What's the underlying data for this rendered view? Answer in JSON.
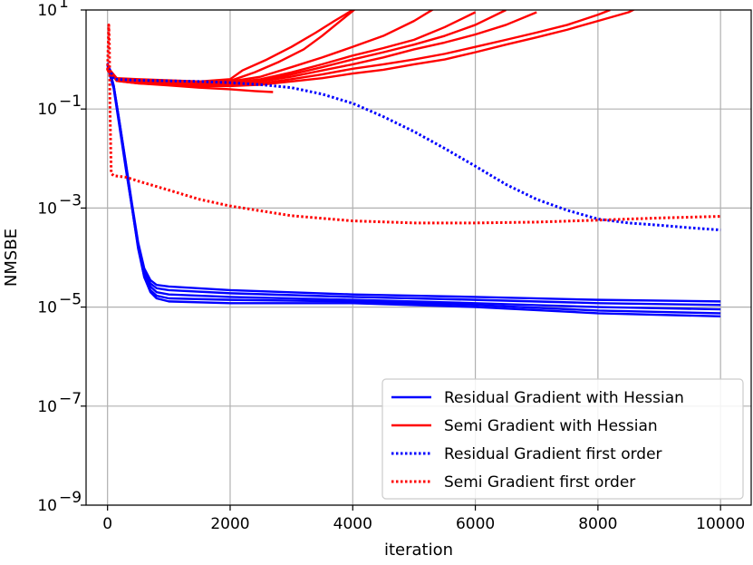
{
  "chart_data": {
    "type": "line",
    "title": "",
    "xlabel": "iteration",
    "ylabel": "NMSBE",
    "xlim": [
      -350,
      10500
    ],
    "ylim": [
      1e-09,
      10
    ],
    "yscale": "log",
    "grid": true,
    "legend_position": "lower-right",
    "x_ticks": [
      0,
      2000,
      4000,
      6000,
      8000,
      10000
    ],
    "x_tick_labels": [
      "0",
      "2000",
      "4000",
      "6000",
      "8000",
      "10000"
    ],
    "y_ticks": [
      {
        "value": 10,
        "base": "10",
        "exp": "1"
      },
      {
        "value": 0.1,
        "base": "10",
        "exp": "−1"
      },
      {
        "value": 0.001,
        "base": "10",
        "exp": "−3"
      },
      {
        "value": 1e-05,
        "base": "10",
        "exp": "−5"
      },
      {
        "value": 1e-07,
        "base": "10",
        "exp": "−7"
      },
      {
        "value": 1e-09,
        "base": "10",
        "exp": "−9"
      }
    ],
    "series": [
      {
        "name": "Residual Gradient with Hessian",
        "color": "#0000ff",
        "style": "solid",
        "runs": [
          {
            "x": [
              0,
              100,
              200,
              300,
              400,
              500,
              600,
              700,
              800,
              1000,
              2000,
              4000,
              6000,
              8000,
              10000
            ],
            "y": [
              0.8,
              0.3,
              0.05,
              0.008,
              0.0012,
              0.0002,
              6e-05,
              3.5e-05,
              2.8e-05,
              2.6e-05,
              2.2e-05,
              1.8e-05,
              1.6e-05,
              1.4e-05,
              1.3e-05
            ]
          },
          {
            "x": [
              0,
              100,
              200,
              300,
              400,
              500,
              600,
              700,
              800,
              1000,
              2000,
              4000,
              6000,
              8000,
              10000
            ],
            "y": [
              0.75,
              0.28,
              0.045,
              0.007,
              0.0011,
              0.00018,
              5e-05,
              3e-05,
              2.4e-05,
              2.2e-05,
              1.9e-05,
              1.6e-05,
              1.4e-05,
              1.2e-05,
              1.1e-05
            ]
          },
          {
            "x": [
              0,
              100,
              200,
              300,
              400,
              500,
              600,
              700,
              800,
              1000,
              2000,
              4000,
              6000,
              8000,
              10000
            ],
            "y": [
              0.7,
              0.26,
              0.04,
              0.006,
              0.001,
              0.00016,
              4.5e-05,
              2.6e-05,
              2e-05,
              1.8e-05,
              1.6e-05,
              1.4e-05,
              1.2e-05,
              1e-05,
              9e-06
            ]
          },
          {
            "x": [
              0,
              100,
              200,
              300,
              400,
              500,
              600,
              700,
              800,
              1000,
              2000,
              4000,
              6000,
              8000,
              10000
            ],
            "y": [
              0.85,
              0.3,
              0.05,
              0.0075,
              0.0011,
              0.00017,
              4e-05,
              2.2e-05,
              1.7e-05,
              1.5e-05,
              1.4e-05,
              1.3e-05,
              1.1e-05,
              8.5e-06,
              7.5e-06
            ]
          },
          {
            "x": [
              0,
              100,
              200,
              300,
              400,
              500,
              600,
              700,
              800,
              1000,
              2000,
              4000,
              6000,
              8000,
              10000
            ],
            "y": [
              0.8,
              0.29,
              0.045,
              0.0065,
              0.001,
              0.00015,
              4e-05,
              2e-05,
              1.5e-05,
              1.3e-05,
              1.2e-05,
              1.2e-05,
              1e-05,
              7.5e-06,
              6.5e-06
            ]
          }
        ]
      },
      {
        "name": "Semi Gradient with Hessian",
        "color": "#ff0000",
        "style": "solid",
        "runs": [
          {
            "x": [
              0,
              150,
              500,
              1000,
              1500,
              2000,
              2200,
              2600,
              3000,
              3400,
              3700,
              4000,
              4400
            ],
            "y": [
              0.7,
              0.42,
              0.4,
              0.38,
              0.36,
              0.4,
              0.6,
              1.0,
              1.8,
              3.5,
              6,
              10,
              20
            ]
          },
          {
            "x": [
              0,
              150,
              500,
              1000,
              1500,
              2000,
              2400,
              2800,
              3200,
              3500,
              3800,
              4100
            ],
            "y": [
              0.65,
              0.4,
              0.38,
              0.36,
              0.34,
              0.37,
              0.55,
              0.9,
              1.6,
              3,
              6,
              12
            ]
          },
          {
            "x": [
              0,
              150,
              500,
              1000,
              1500,
              2000,
              2500,
              3000,
              3500,
              4000,
              4500,
              5000,
              5400
            ],
            "y": [
              0.7,
              0.41,
              0.39,
              0.37,
              0.35,
              0.36,
              0.45,
              0.7,
              1.1,
              1.8,
              3,
              6,
              12
            ]
          },
          {
            "x": [
              0,
              150,
              500,
              1000,
              1500,
              2000,
              2500,
              3000,
              3500,
              4000,
              4500,
              5000,
              5500,
              6000
            ],
            "y": [
              0.6,
              0.4,
              0.37,
              0.35,
              0.33,
              0.34,
              0.4,
              0.55,
              0.8,
              1.2,
              1.7,
              2.5,
              4.5,
              9
            ]
          },
          {
            "x": [
              0,
              150,
              500,
              1000,
              1500,
              2000,
              2500,
              3000,
              3500,
              4000,
              4500,
              5000,
              5500,
              6000,
              6500
            ],
            "y": [
              0.65,
              0.39,
              0.36,
              0.34,
              0.32,
              0.33,
              0.37,
              0.5,
              0.7,
              1.0,
              1.4,
              2.0,
              3.0,
              5,
              10
            ]
          },
          {
            "x": [
              0,
              150,
              500,
              1000,
              1500,
              2000,
              2500,
              3000,
              3500,
              4000,
              4500,
              5000,
              5500,
              6000,
              6500,
              7000
            ],
            "y": [
              0.7,
              0.38,
              0.35,
              0.33,
              0.31,
              0.32,
              0.36,
              0.45,
              0.6,
              0.8,
              1.1,
              1.6,
              2.2,
              3.2,
              5,
              9
            ]
          },
          {
            "x": [
              0,
              150,
              500,
              1000,
              1500,
              2000,
              2500,
              3000,
              3500,
              4000,
              4500,
              5000,
              5500,
              6000,
              6500,
              7000,
              7500,
              8000,
              8200
            ],
            "y": [
              0.6,
              0.38,
              0.34,
              0.32,
              0.3,
              0.3,
              0.33,
              0.4,
              0.5,
              0.65,
              0.8,
              1.0,
              1.3,
              1.8,
              2.5,
              3.5,
              5,
              8,
              10
            ]
          },
          {
            "x": [
              0,
              150,
              500,
              1000,
              1500,
              2000,
              2500,
              3000,
              3500,
              4000,
              4500,
              5000,
              5500,
              6000,
              6500,
              7000,
              7500,
              8000,
              8500,
              8700
            ],
            "y": [
              0.65,
              0.37,
              0.33,
              0.31,
              0.29,
              0.29,
              0.31,
              0.36,
              0.42,
              0.52,
              0.62,
              0.8,
              1.0,
              1.4,
              2.0,
              2.8,
              4,
              6,
              9,
              12
            ]
          },
          {
            "x": [
              0,
              150,
              500,
              1000,
              1500,
              2000,
              2400,
              2700
            ],
            "y": [
              0.7,
              0.37,
              0.33,
              0.3,
              0.27,
              0.25,
              0.23,
              0.22
            ]
          }
        ]
      },
      {
        "name": "Residual Gradient first order",
        "color": "#0000ff",
        "style": "dotted",
        "runs": [
          {
            "x": [
              0,
              100,
              500,
              1000,
              1500,
              2000,
              2500,
              3000,
              3500,
              4000,
              4500,
              5000,
              5500,
              6000,
              6500,
              7000,
              7500,
              8000,
              8500,
              9000,
              9500,
              10000
            ],
            "y": [
              0.8,
              0.4,
              0.38,
              0.37,
              0.36,
              0.34,
              0.31,
              0.27,
              0.2,
              0.13,
              0.07,
              0.035,
              0.016,
              0.007,
              0.003,
              0.0015,
              0.0009,
              0.0006,
              0.0005,
              0.00045,
              0.0004,
              0.00036
            ]
          }
        ]
      },
      {
        "name": "Semi Gradient first order",
        "color": "#ff0000",
        "style": "dotted",
        "runs": [
          {
            "x": [
              0,
              20,
              30,
              40,
              60,
              100,
              300,
              500,
              1000,
              1500,
              2000,
              3000,
              4000,
              5000,
              6000,
              7000,
              8000,
              9000,
              10000
            ],
            "y": [
              0.6,
              5.0,
              2.0,
              0.1,
              0.005,
              0.0045,
              0.0042,
              0.0035,
              0.0023,
              0.0015,
              0.0011,
              0.0007,
              0.00055,
              0.0005,
              0.0005,
              0.00052,
              0.00057,
              0.00063,
              0.00068
            ]
          }
        ]
      }
    ]
  }
}
